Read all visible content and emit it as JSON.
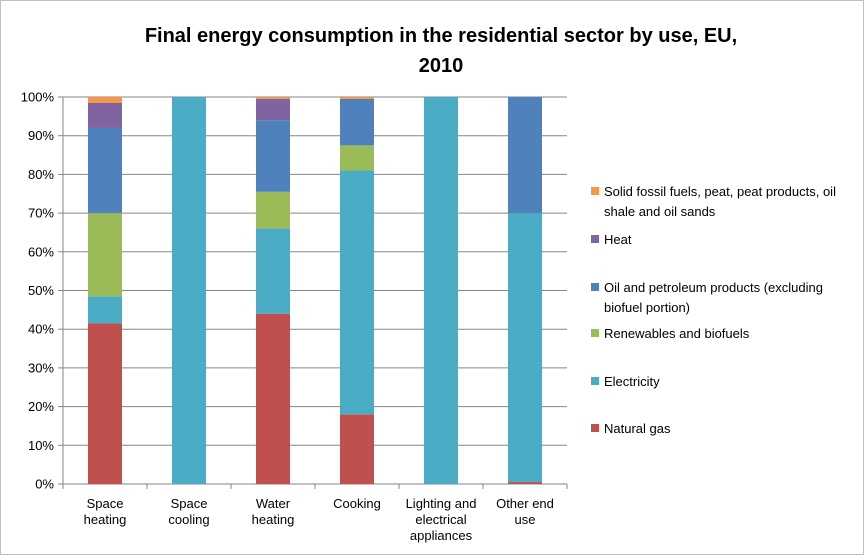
{
  "chart_data": {
    "type": "bar",
    "stacked": true,
    "title_line1": "Final energy consumption in the residential sector by use, EU,",
    "title_line2": "2010",
    "categories": [
      [
        "Space",
        "heating"
      ],
      [
        "Space",
        "cooling"
      ],
      [
        "Water",
        "heating"
      ],
      [
        "Cooking"
      ],
      [
        "Lighting and",
        "electrical",
        "appliances"
      ],
      [
        "Other end",
        "use"
      ]
    ],
    "yticks": [
      "0%",
      "10%",
      "20%",
      "30%",
      "40%",
      "50%",
      "60%",
      "70%",
      "80%",
      "90%",
      "100%"
    ],
    "ylim": [
      0,
      100
    ],
    "grid": true,
    "legend_position": "right",
    "series": [
      {
        "name": "Natural gas",
        "color": "#C0504D",
        "values": [
          41.5,
          0,
          44,
          18,
          0,
          0.5
        ]
      },
      {
        "name": "Electricity",
        "color": "#4BACC6",
        "values": [
          7,
          100,
          22,
          63,
          100,
          69.5
        ]
      },
      {
        "name": "Renewables and biofuels",
        "color": "#9BBB59",
        "values": [
          21.5,
          0,
          9.5,
          6.5,
          0,
          0
        ]
      },
      {
        "name": "Oil and petroleum products (excluding biofuel portion)",
        "color": "#4F81BD",
        "values": [
          22,
          0,
          18.5,
          12,
          0,
          30
        ]
      },
      {
        "name": "Heat",
        "color": "#8064A2",
        "values": [
          6.5,
          0,
          5.5,
          0,
          0,
          0
        ]
      },
      {
        "name": "Solid fossil fuels, peat, peat products, oil shale and oil sands",
        "color": "#F79646",
        "values": [
          1.5,
          0,
          0.5,
          0.5,
          0,
          0
        ]
      }
    ],
    "legend_lines": [
      [
        "Solid fossil fuels, peat, peat products, oil",
        "shale and oil sands"
      ],
      [
        "Heat"
      ],
      [
        "Oil and petroleum products (excluding",
        "biofuel portion)"
      ],
      [
        "Renewables and biofuels"
      ],
      [
        "Electricity"
      ],
      [
        "Natural gas"
      ]
    ]
  }
}
